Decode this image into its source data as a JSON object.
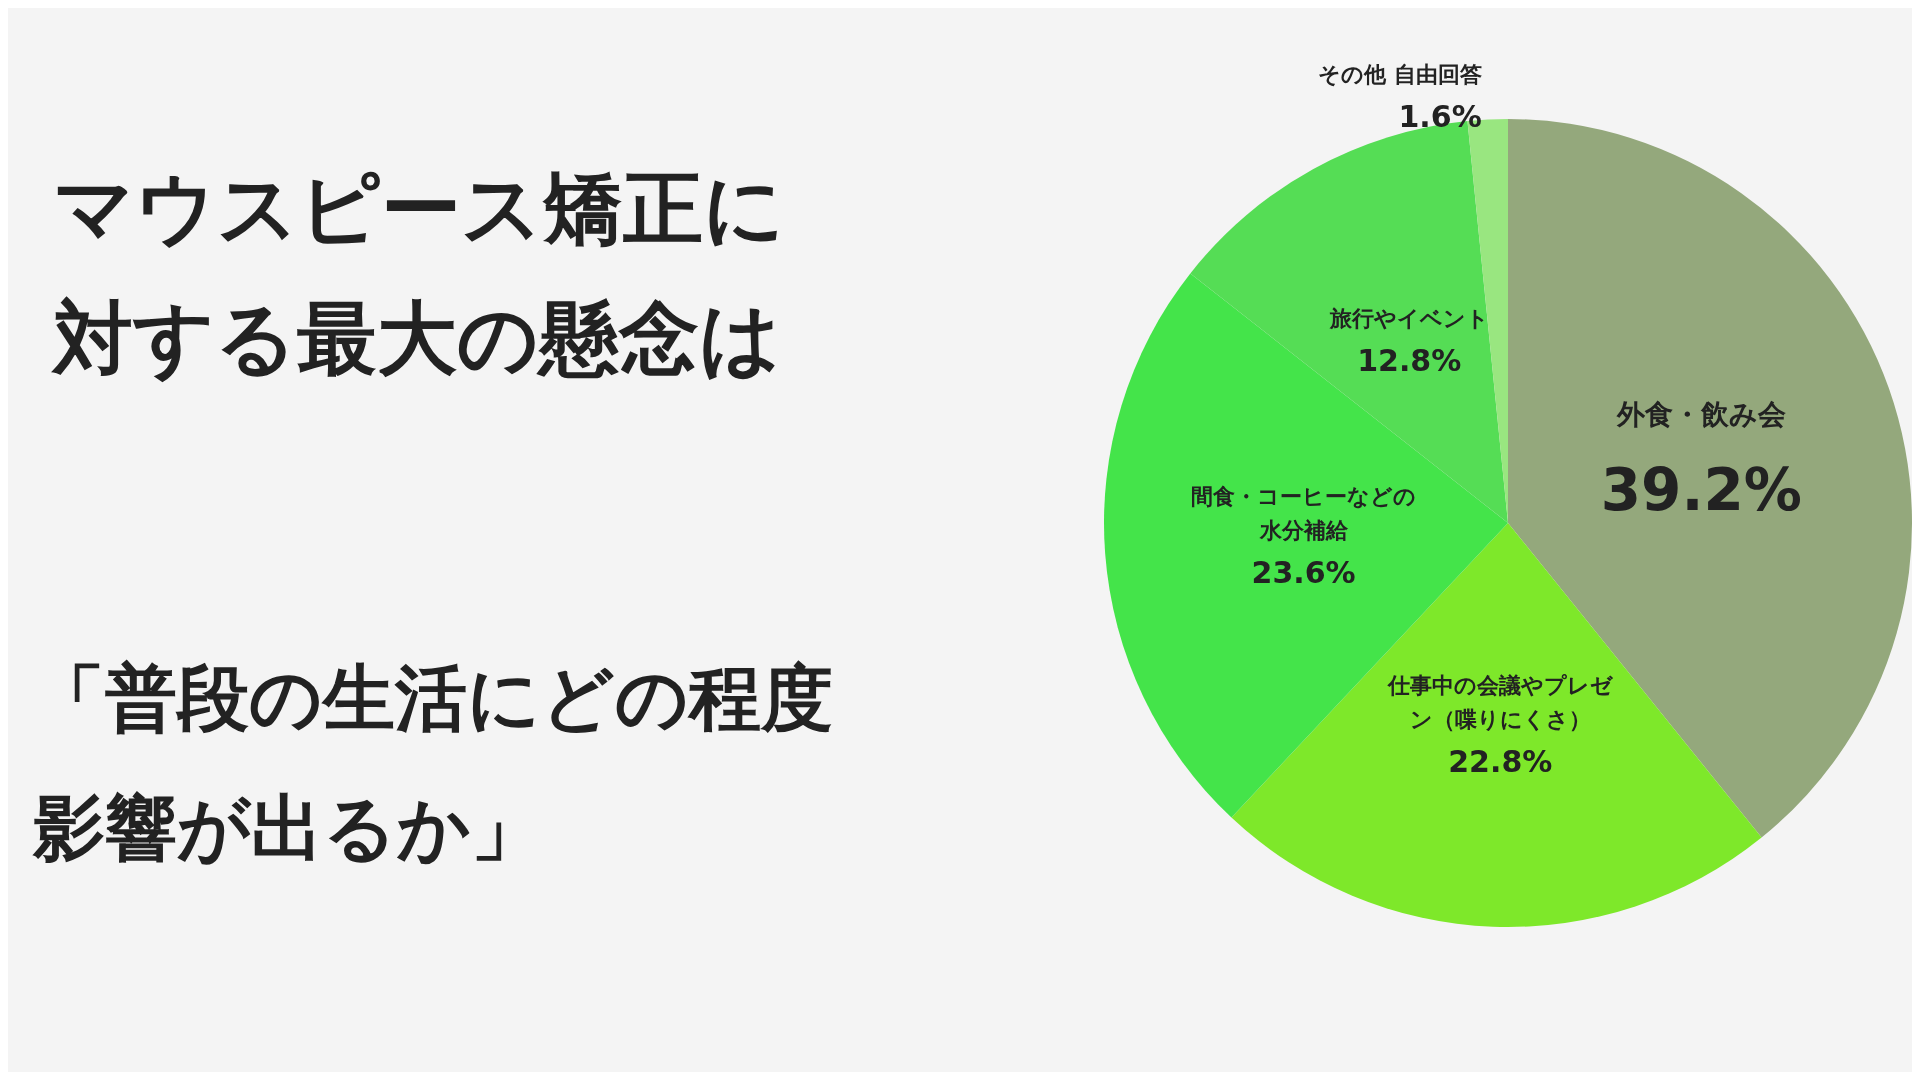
{
  "chart_data": {
    "type": "pie",
    "title": "マウスピース矯正に対する最大の懸念は",
    "subtitle": "「普段の生活にどの程度影響が出るか」",
    "categories": [
      "外食・飲み会",
      "仕事中の会議やプレゼン（喋りにくさ）",
      "間食・コーヒーなどの水分補給",
      "旅行やイベント",
      "その他 自由回答"
    ],
    "values": [
      39.2,
      22.8,
      23.6,
      12.8,
      1.6
    ],
    "colors": [
      "#94a87c",
      "#7ee82a",
      "#44e44a",
      "#55dd55",
      "#99e680"
    ],
    "value_labels": [
      "39.2%",
      "22.8%",
      "23.6%",
      "12.8%",
      "1.6%"
    ],
    "legend": false
  }
}
